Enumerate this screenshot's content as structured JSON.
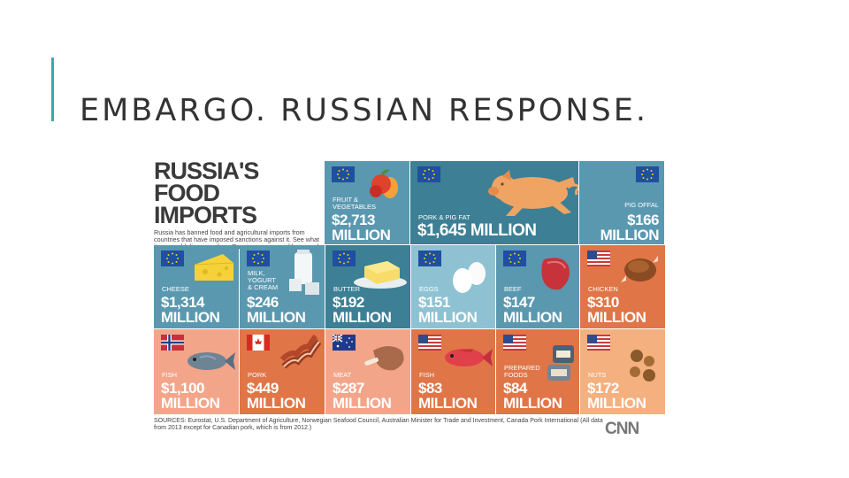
{
  "slide": {
    "title": "EMBARGO. RUSSIAN RESPONSE."
  },
  "infographic": {
    "title_line1": "RUSSIA'S",
    "title_line2": "FOOD IMPORTS",
    "intro": "Russia has banned food and agricultural imports from countries that have imposed sanctions against it. See what items could disappear from Russian menus, and how much they are worth:",
    "sources": "SOURCES: Eurostat, U.S. Department of Agriculture, Norwegian Seafood Council, Australian Minister for Trade and Investment, Canada Pork International (All data from 2013 except for Canadian pork, which is from 2012.)",
    "logo": "CNN",
    "colors": {
      "dark_teal": "#3d7f95",
      "mid_blue": "#5a98b0",
      "light_blue": "#8ec2d3",
      "orange": "#e07548",
      "salmon": "#f3a58a",
      "light_orange": "#f4b07f"
    },
    "items": [
      {
        "label": "FRUIT &\nVEGETABLES",
        "value_line1": "$2,713",
        "value_line2": "MILLION",
        "flag": "EU",
        "icon": "fruit-icon"
      },
      {
        "label": "PORK & PIG FAT",
        "value_line1": "$1,645 MILLION",
        "value_line2": "",
        "flag": "EU",
        "icon": "pig-icon"
      },
      {
        "label": "PIG OFFAL",
        "value_line1": "$166",
        "value_line2": "MILLION",
        "flag": "EU",
        "icon": ""
      },
      {
        "label": "CHEESE",
        "value_line1": "$1,314",
        "value_line2": "MILLION",
        "flag": "EU",
        "icon": "cheese-icon"
      },
      {
        "label": "MILK,\nYOGURT\n& CREAM",
        "value_line1": "$246",
        "value_line2": "MILLION",
        "flag": "EU",
        "icon": "milk-icon"
      },
      {
        "label": "BUTTER",
        "value_line1": "$192",
        "value_line2": "MILLION",
        "flag": "EU",
        "icon": "butter-icon"
      },
      {
        "label": "EGGS",
        "value_line1": "$151",
        "value_line2": "MILLION",
        "flag": "EU",
        "icon": "eggs-icon"
      },
      {
        "label": "BEEF",
        "value_line1": "$147",
        "value_line2": "MILLION",
        "flag": "EU",
        "icon": "beef-icon"
      },
      {
        "label": "CHICKEN",
        "value_line1": "$310",
        "value_line2": "MILLION",
        "flag": "US",
        "icon": "chicken-icon"
      },
      {
        "label": "FISH",
        "value_line1": "$1,100",
        "value_line2": "MILLION",
        "flag": "NO",
        "icon": "fish-icon"
      },
      {
        "label": "PORK",
        "value_line1": "$449",
        "value_line2": "MILLION",
        "flag": "CA",
        "icon": "bacon-icon"
      },
      {
        "label": "MEAT",
        "value_line1": "$287",
        "value_line2": "MILLION",
        "flag": "AU",
        "icon": "meat-icon"
      },
      {
        "label": "FISH",
        "value_line1": "$83",
        "value_line2": "MILLION",
        "flag": "US",
        "icon": "red-fish-icon"
      },
      {
        "label": "PREPARED\nFOODS",
        "value_line1": "$84",
        "value_line2": "MILLION",
        "flag": "US",
        "icon": "cans-icon"
      },
      {
        "label": "NUTS",
        "value_line1": "$172",
        "value_line2": "MILLION",
        "flag": "US",
        "icon": "nuts-icon"
      }
    ]
  }
}
